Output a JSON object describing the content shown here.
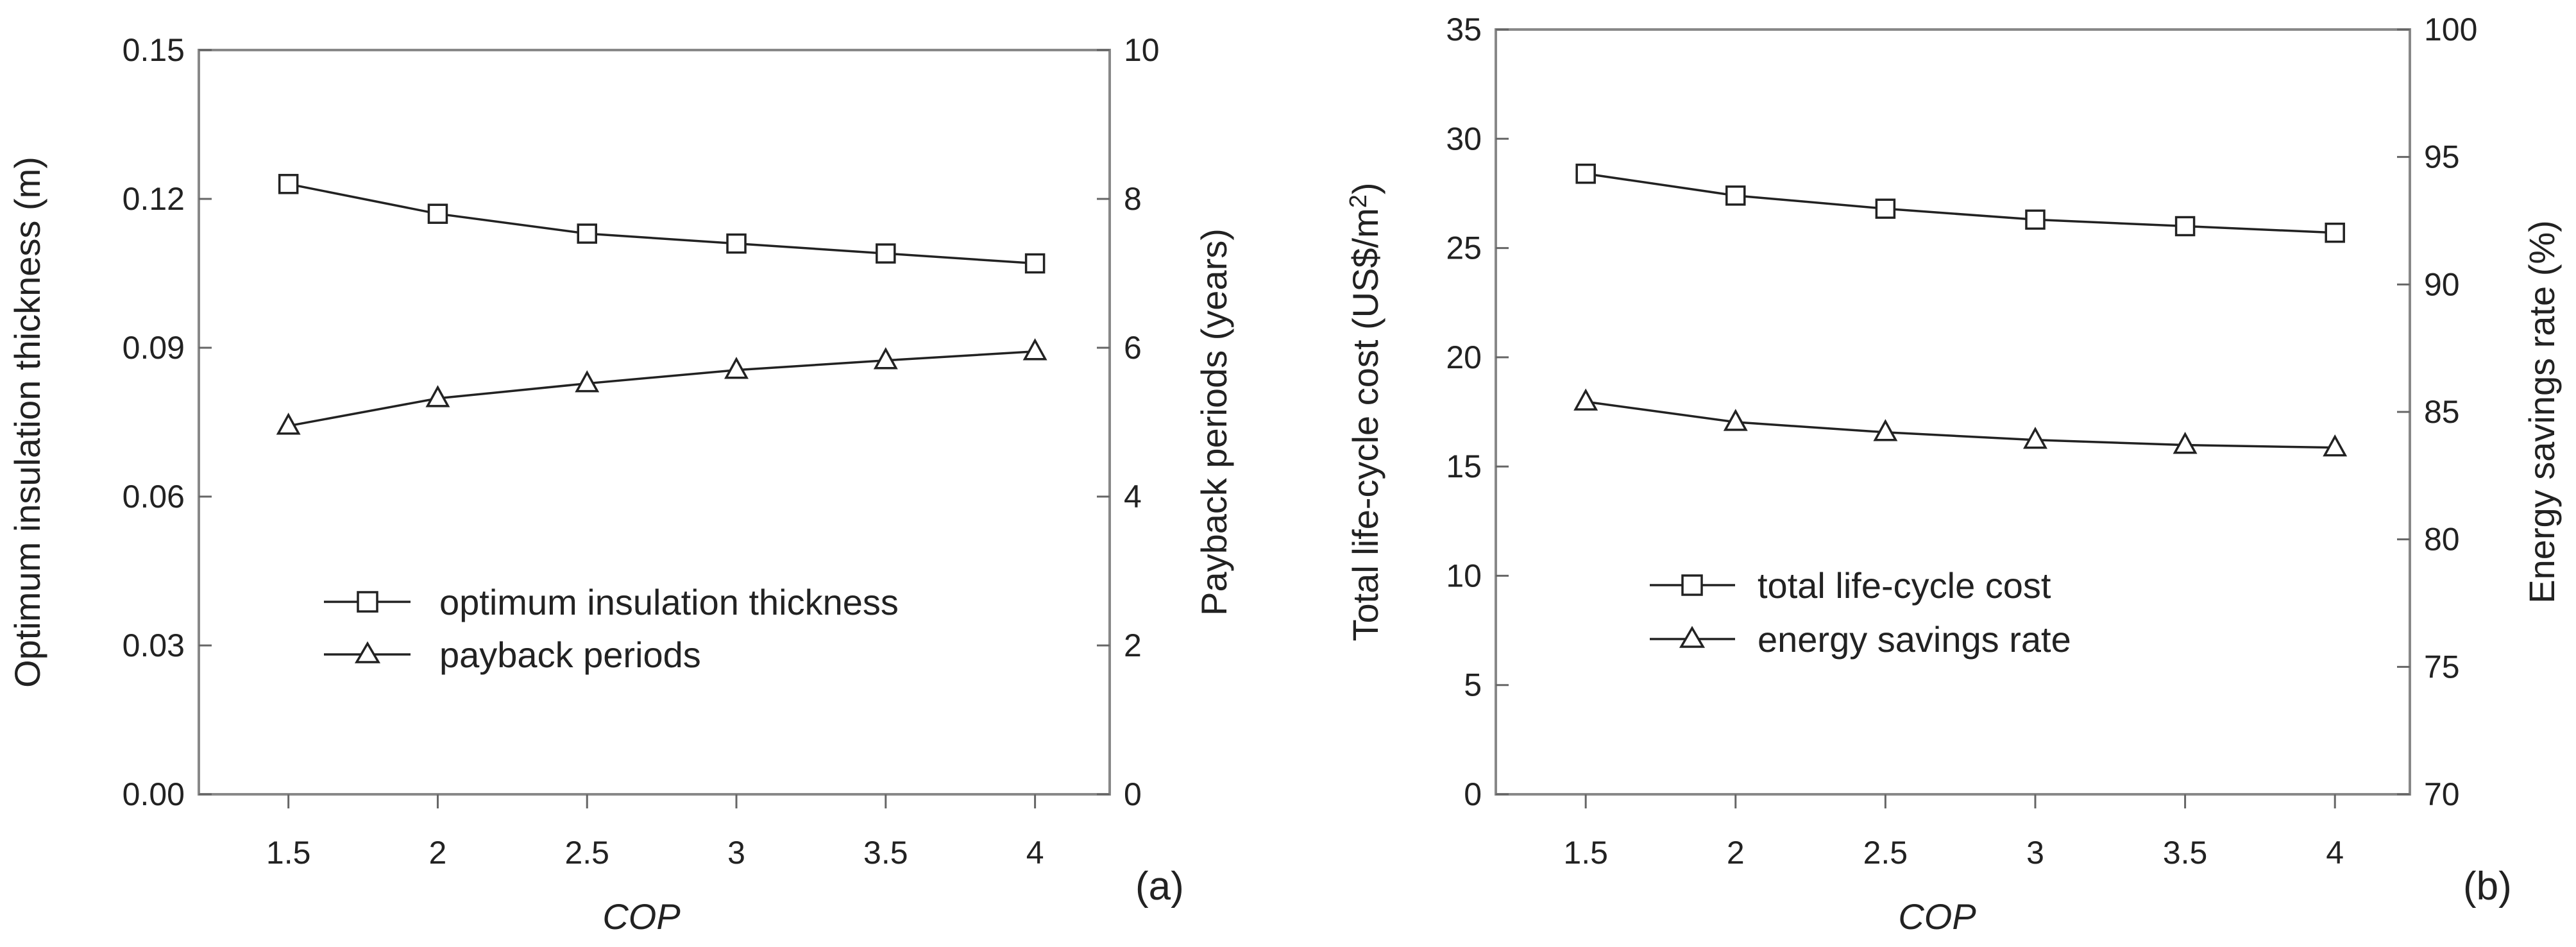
{
  "chart_data": [
    {
      "type": "line",
      "panel_label": "(a)",
      "x": [
        1.5,
        2,
        2.5,
        3,
        3.5,
        4
      ],
      "x_ticks": [
        "1.5",
        "2",
        "2.5",
        "3",
        "3.5",
        "4"
      ],
      "xlim": [
        1.2,
        4.25
      ],
      "xlabel": "COP",
      "ylabel_left": "Optimum insulation thickness (m)",
      "ylabel_right": "Payback periods (years)",
      "ylim_left": [
        0,
        0.15
      ],
      "ylim_right": [
        0,
        10
      ],
      "y_ticks_left": [
        "0.00",
        "0.03",
        "0.06",
        "0.09",
        "0.12",
        "0.15"
      ],
      "y_ticks_right": [
        "0",
        "2",
        "4",
        "6",
        "8",
        "10"
      ],
      "grid": false,
      "legend_position": "lower-left",
      "series": [
        {
          "name": "optimum insulation thickness",
          "axis": "left",
          "marker": "square",
          "values": [
            0.123,
            0.117,
            0.113,
            0.111,
            0.109,
            0.107
          ]
        },
        {
          "name": "payback periods",
          "axis": "right",
          "marker": "triangle",
          "values": [
            4.95,
            5.32,
            5.52,
            5.7,
            5.83,
            5.95
          ]
        }
      ]
    },
    {
      "type": "line",
      "panel_label": "(b)",
      "x": [
        1.5,
        2,
        2.5,
        3,
        3.5,
        4
      ],
      "x_ticks": [
        "1.5",
        "2",
        "2.5",
        "3",
        "3.5",
        "4"
      ],
      "xlim": [
        1.2,
        4.25
      ],
      "xlabel": "COP",
      "ylabel_left": "Total life-cycle cost (US$/m",
      "ylabel_left_superscript": "2",
      "ylabel_left_suffix": ")",
      "ylabel_right": "Energy savings rate (%)",
      "ylim_left": [
        0,
        35
      ],
      "ylim_right": [
        70,
        100
      ],
      "y_ticks_left": [
        "0",
        "5",
        "10",
        "15",
        "20",
        "25",
        "30",
        "35"
      ],
      "y_ticks_right": [
        "70",
        "75",
        "80",
        "85",
        "90",
        "95",
        "100"
      ],
      "grid": false,
      "legend_position": "lower-left",
      "series": [
        {
          "name": "total life-cycle cost",
          "axis": "left",
          "marker": "square",
          "values": [
            28.4,
            27.4,
            26.8,
            26.3,
            26.0,
            25.7
          ]
        },
        {
          "name": "energy savings rate",
          "axis": "right",
          "marker": "triangle",
          "values": [
            85.4,
            84.6,
            84.2,
            83.9,
            83.7,
            83.6
          ]
        }
      ]
    }
  ]
}
